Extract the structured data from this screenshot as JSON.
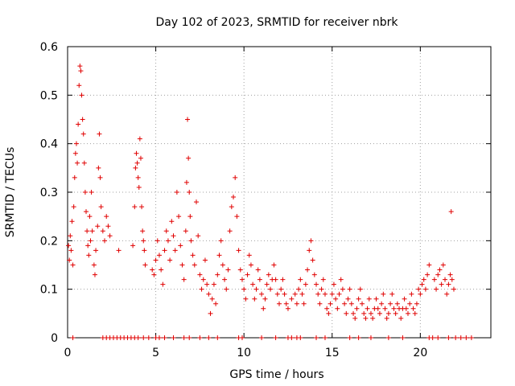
{
  "chart_data": {
    "type": "scatter",
    "title": "Day 102 of 2023, SRMTID for receiver nbrk",
    "xlabel": "GPS time / hours",
    "ylabel": "SRMTID / TECUs",
    "xlim": [
      0,
      24
    ],
    "ylim": [
      0,
      0.6
    ],
    "x_ticks": [
      0,
      5,
      10,
      15,
      20
    ],
    "y_ticks": [
      0,
      0.1,
      0.2,
      0.3,
      0.4,
      0.5,
      0.6
    ],
    "x_tick_labels": [
      "0",
      "5",
      "10",
      "15",
      "20"
    ],
    "y_tick_labels": [
      "0",
      "0.1",
      "0.2",
      "0.3",
      "0.4",
      "0.5",
      "0.6"
    ],
    "grid": true,
    "marker": "plus",
    "color": "#e00000",
    "series": [
      {
        "name": "SRMTID",
        "points": [
          [
            0.05,
            0.19
          ],
          [
            0.1,
            0.16
          ],
          [
            0.15,
            0.21
          ],
          [
            0.2,
            0.18
          ],
          [
            0.25,
            0.24
          ],
          [
            0.3,
            0.15
          ],
          [
            0.35,
            0.27
          ],
          [
            0.4,
            0.33
          ],
          [
            0.45,
            0.38
          ],
          [
            0.5,
            0.4
          ],
          [
            0.55,
            0.36
          ],
          [
            0.6,
            0.44
          ],
          [
            0.65,
            0.52
          ],
          [
            0.7,
            0.56
          ],
          [
            0.75,
            0.55
          ],
          [
            0.8,
            0.5
          ],
          [
            0.85,
            0.45
          ],
          [
            0.9,
            0.42
          ],
          [
            0.95,
            0.36
          ],
          [
            1.0,
            0.3
          ],
          [
            1.05,
            0.26
          ],
          [
            1.1,
            0.22
          ],
          [
            1.15,
            0.19
          ],
          [
            1.2,
            0.17
          ],
          [
            1.25,
            0.25
          ],
          [
            1.3,
            0.2
          ],
          [
            1.35,
            0.3
          ],
          [
            1.4,
            0.22
          ],
          [
            1.5,
            0.15
          ],
          [
            1.55,
            0.13
          ],
          [
            1.6,
            0.18
          ],
          [
            1.7,
            0.23
          ],
          [
            1.75,
            0.35
          ],
          [
            1.8,
            0.42
          ],
          [
            1.85,
            0.33
          ],
          [
            1.9,
            0.27
          ],
          [
            2.0,
            0.22
          ],
          [
            2.1,
            0.2
          ],
          [
            2.2,
            0.25
          ],
          [
            2.3,
            0.23
          ],
          [
            2.4,
            0.21
          ],
          [
            2.9,
            0.18
          ],
          [
            3.7,
            0.19
          ],
          [
            3.8,
            0.27
          ],
          [
            3.85,
            0.35
          ],
          [
            3.9,
            0.38
          ],
          [
            3.95,
            0.36
          ],
          [
            4.0,
            0.33
          ],
          [
            4.05,
            0.31
          ],
          [
            4.1,
            0.41
          ],
          [
            4.15,
            0.37
          ],
          [
            4.2,
            0.27
          ],
          [
            4.25,
            0.22
          ],
          [
            4.3,
            0.2
          ],
          [
            4.35,
            0.18
          ],
          [
            4.4,
            0.15
          ],
          [
            4.8,
            0.14
          ],
          [
            4.9,
            0.13
          ],
          [
            5.0,
            0.16
          ],
          [
            5.1,
            0.2
          ],
          [
            5.2,
            0.17
          ],
          [
            5.3,
            0.14
          ],
          [
            5.4,
            0.11
          ],
          [
            5.5,
            0.18
          ],
          [
            5.6,
            0.22
          ],
          [
            5.7,
            0.2
          ],
          [
            5.8,
            0.16
          ],
          [
            5.9,
            0.24
          ],
          [
            6.0,
            0.21
          ],
          [
            6.1,
            0.18
          ],
          [
            6.2,
            0.3
          ],
          [
            6.3,
            0.25
          ],
          [
            6.4,
            0.19
          ],
          [
            6.5,
            0.15
          ],
          [
            6.6,
            0.12
          ],
          [
            6.7,
            0.22
          ],
          [
            6.75,
            0.32
          ],
          [
            6.8,
            0.45
          ],
          [
            6.85,
            0.37
          ],
          [
            6.9,
            0.3
          ],
          [
            6.95,
            0.25
          ],
          [
            7.0,
            0.2
          ],
          [
            7.1,
            0.17
          ],
          [
            7.2,
            0.15
          ],
          [
            7.3,
            0.28
          ],
          [
            7.4,
            0.21
          ],
          [
            7.5,
            0.13
          ],
          [
            7.6,
            0.1
          ],
          [
            7.7,
            0.12
          ],
          [
            7.8,
            0.16
          ],
          [
            7.9,
            0.11
          ],
          [
            8.0,
            0.09
          ],
          [
            8.1,
            0.05
          ],
          [
            8.2,
            0.08
          ],
          [
            8.3,
            0.11
          ],
          [
            8.4,
            0.07
          ],
          [
            8.5,
            0.13
          ],
          [
            8.6,
            0.17
          ],
          [
            8.7,
            0.2
          ],
          [
            8.8,
            0.15
          ],
          [
            8.9,
            0.12
          ],
          [
            9.0,
            0.1
          ],
          [
            9.1,
            0.14
          ],
          [
            9.2,
            0.22
          ],
          [
            9.3,
            0.27
          ],
          [
            9.4,
            0.29
          ],
          [
            9.5,
            0.33
          ],
          [
            9.6,
            0.25
          ],
          [
            9.7,
            0.18
          ],
          [
            9.8,
            0.14
          ],
          [
            9.9,
            0.12
          ],
          [
            10.0,
            0.1
          ],
          [
            10.1,
            0.08
          ],
          [
            10.2,
            0.13
          ],
          [
            10.3,
            0.17
          ],
          [
            10.4,
            0.15
          ],
          [
            10.5,
            0.11
          ],
          [
            10.6,
            0.08
          ],
          [
            10.7,
            0.1
          ],
          [
            10.8,
            0.14
          ],
          [
            10.9,
            0.12
          ],
          [
            11.0,
            0.09
          ],
          [
            11.1,
            0.06
          ],
          [
            11.2,
            0.08
          ],
          [
            11.3,
            0.11
          ],
          [
            11.4,
            0.13
          ],
          [
            11.5,
            0.1
          ],
          [
            11.6,
            0.12
          ],
          [
            11.7,
            0.15
          ],
          [
            11.8,
            0.12
          ],
          [
            11.9,
            0.09
          ],
          [
            12.0,
            0.07
          ],
          [
            12.1,
            0.1
          ],
          [
            12.2,
            0.12
          ],
          [
            12.3,
            0.09
          ],
          [
            12.4,
            0.07
          ],
          [
            12.5,
            0.06
          ],
          [
            12.7,
            0.08
          ],
          [
            12.9,
            0.09
          ],
          [
            13.0,
            0.07
          ],
          [
            13.1,
            0.1
          ],
          [
            13.2,
            0.12
          ],
          [
            13.3,
            0.09
          ],
          [
            13.4,
            0.07
          ],
          [
            13.5,
            0.11
          ],
          [
            13.6,
            0.14
          ],
          [
            13.7,
            0.18
          ],
          [
            13.8,
            0.2
          ],
          [
            13.9,
            0.16
          ],
          [
            14.0,
            0.13
          ],
          [
            14.1,
            0.11
          ],
          [
            14.2,
            0.09
          ],
          [
            14.3,
            0.07
          ],
          [
            14.4,
            0.1
          ],
          [
            14.5,
            0.12
          ],
          [
            14.6,
            0.09
          ],
          [
            14.7,
            0.06
          ],
          [
            14.8,
            0.05
          ],
          [
            14.9,
            0.07
          ],
          [
            15.0,
            0.09
          ],
          [
            15.1,
            0.11
          ],
          [
            15.2,
            0.08
          ],
          [
            15.3,
            0.06
          ],
          [
            15.4,
            0.09
          ],
          [
            15.5,
            0.12
          ],
          [
            15.6,
            0.1
          ],
          [
            15.7,
            0.07
          ],
          [
            15.8,
            0.05
          ],
          [
            15.9,
            0.08
          ],
          [
            16.0,
            0.1
          ],
          [
            16.1,
            0.07
          ],
          [
            16.2,
            0.05
          ],
          [
            16.3,
            0.04
          ],
          [
            16.4,
            0.06
          ],
          [
            16.5,
            0.08
          ],
          [
            16.6,
            0.1
          ],
          [
            16.7,
            0.07
          ],
          [
            16.8,
            0.05
          ],
          [
            16.9,
            0.04
          ],
          [
            17.0,
            0.06
          ],
          [
            17.1,
            0.08
          ],
          [
            17.2,
            0.05
          ],
          [
            17.3,
            0.04
          ],
          [
            17.4,
            0.06
          ],
          [
            17.5,
            0.08
          ],
          [
            17.6,
            0.06
          ],
          [
            17.7,
            0.05
          ],
          [
            17.8,
            0.07
          ],
          [
            17.9,
            0.09
          ],
          [
            18.0,
            0.06
          ],
          [
            18.1,
            0.04
          ],
          [
            18.2,
            0.05
          ],
          [
            18.3,
            0.07
          ],
          [
            18.4,
            0.09
          ],
          [
            18.5,
            0.06
          ],
          [
            18.6,
            0.05
          ],
          [
            18.7,
            0.07
          ],
          [
            18.8,
            0.06
          ],
          [
            18.9,
            0.04
          ],
          [
            19.0,
            0.06
          ],
          [
            19.1,
            0.08
          ],
          [
            19.2,
            0.06
          ],
          [
            19.3,
            0.05
          ],
          [
            19.4,
            0.07
          ],
          [
            19.5,
            0.09
          ],
          [
            19.6,
            0.06
          ],
          [
            19.7,
            0.05
          ],
          [
            19.8,
            0.07
          ],
          [
            19.9,
            0.1
          ],
          [
            20.0,
            0.09
          ],
          [
            20.1,
            0.11
          ],
          [
            20.2,
            0.12
          ],
          [
            20.3,
            0.1
          ],
          [
            20.4,
            0.13
          ],
          [
            20.5,
            0.15
          ],
          [
            20.8,
            0.12
          ],
          [
            20.9,
            0.1
          ],
          [
            21.0,
            0.13
          ],
          [
            21.1,
            0.14
          ],
          [
            21.2,
            0.11
          ],
          [
            21.3,
            0.15
          ],
          [
            21.4,
            0.12
          ],
          [
            21.5,
            0.09
          ],
          [
            21.6,
            0.11
          ],
          [
            21.7,
            0.13
          ],
          [
            21.75,
            0.26
          ],
          [
            21.8,
            0.12
          ],
          [
            21.9,
            0.1
          ]
        ]
      }
    ],
    "zero_markers_x": [
      0.3,
      2.0,
      2.2,
      2.4,
      2.6,
      2.8,
      3.0,
      3.2,
      3.4,
      3.6,
      3.8,
      4.0,
      4.3,
      4.6,
      5.0,
      5.2,
      5.5,
      6.0,
      6.6,
      6.9,
      7.5,
      8.0,
      8.5,
      9.7,
      9.9,
      11.0,
      11.8,
      12.5,
      12.7,
      13.0,
      13.2,
      14.1,
      14.6,
      16.0,
      16.5,
      17.2,
      18.2,
      19.0,
      20.5,
      20.7,
      21.0,
      21.6,
      22.0,
      22.3,
      22.6,
      22.9
    ]
  }
}
